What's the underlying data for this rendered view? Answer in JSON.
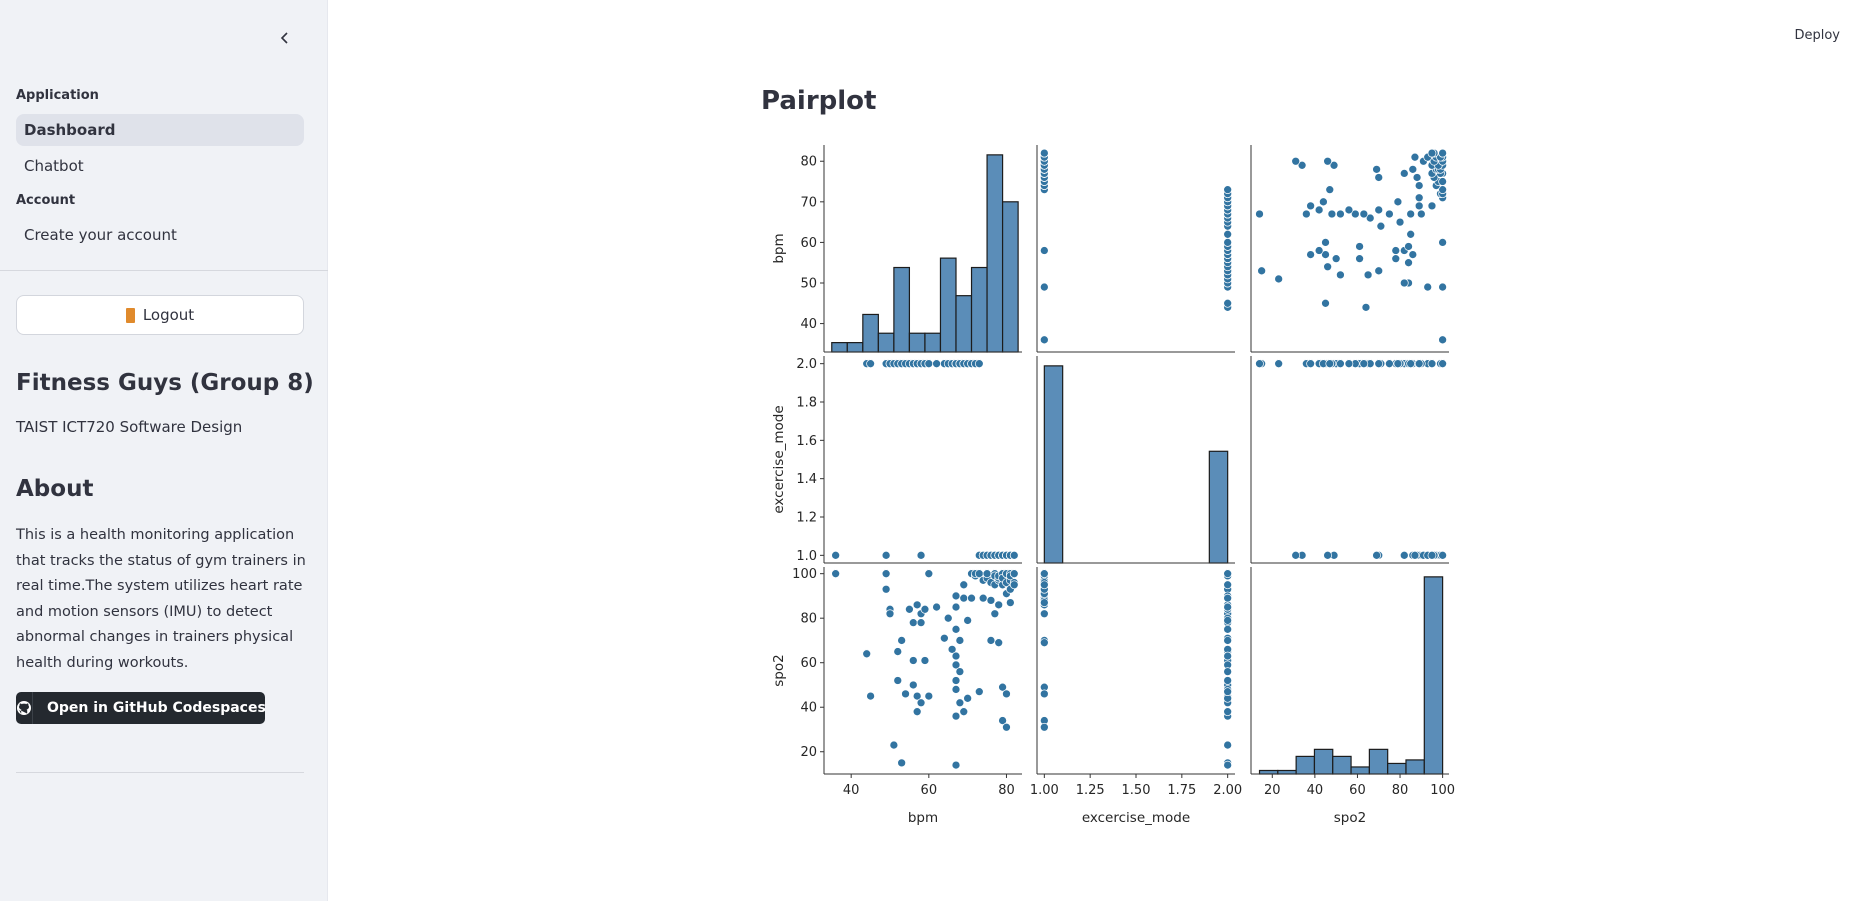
{
  "sidebar": {
    "nav": [
      {
        "header": "Application",
        "items": [
          {
            "label": "Dashboard",
            "active": true
          },
          {
            "label": "Chatbot",
            "active": false
          }
        ]
      },
      {
        "header": "Account",
        "items": [
          {
            "label": "Create your account",
            "active": false
          }
        ]
      }
    ],
    "logout_label": "Logout",
    "team_title": "Fitness Guys (Group 8)",
    "course": "TAIST ICT720 Software Design",
    "about_title": "About",
    "about_text": "This is a health monitoring application that tracks the status of gym trainers in real time.The system utilizes heart rate and motion sensors (IMU) to detect abnormal changes in trainers physical health during workouts.",
    "codespaces_label": "Open in GitHub Codespaces"
  },
  "header": {
    "deploy_label": "Deploy"
  },
  "main": {
    "title": "Pairplot"
  },
  "chart_data": {
    "type": "scatter",
    "title": "",
    "variables": [
      {
        "name": "bpm",
        "range": [
          33,
          84
        ],
        "ticks": [
          40,
          60,
          80
        ],
        "yticks": [
          40,
          50,
          60,
          70,
          80
        ]
      },
      {
        "name": "excercise_mode",
        "range": [
          0.96,
          2.04
        ],
        "ticks": [
          1.0,
          1.25,
          1.5,
          1.75,
          2.0
        ],
        "yticks": [
          1.0,
          1.2,
          1.4,
          1.6,
          1.8,
          2.0
        ]
      },
      {
        "name": "spo2",
        "range": [
          10,
          103
        ],
        "ticks": [
          20,
          40,
          60,
          80,
          100
        ],
        "yticks": [
          20,
          40,
          60,
          80,
          100
        ]
      }
    ],
    "hist": {
      "bpm": {
        "edges": [
          35,
          39,
          43,
          47,
          51,
          55,
          59,
          63,
          67,
          71,
          75,
          79,
          83
        ],
        "counts": [
          1,
          1,
          4,
          2,
          9,
          2,
          2,
          10,
          6,
          9,
          21,
          16
        ]
      },
      "excercise_mode": {
        "edges": [
          1.0,
          1.1,
          1.9,
          2.0
        ],
        "counts": [
          60,
          0,
          34
        ]
      },
      "spo2": {
        "edges": [
          14,
          22.6,
          31.2,
          39.8,
          48.4,
          57,
          65.6,
          74.2,
          82.8,
          91.4,
          100
        ],
        "counts": [
          1,
          1,
          5,
          7,
          5,
          2,
          7,
          3,
          4,
          56
        ]
      }
    },
    "hist_max": {
      "bpm": 21,
      "excercise_mode": 60,
      "spo2": 56
    },
    "points": [
      [
        36,
        1,
        100
      ],
      [
        44,
        2,
        64
      ],
      [
        45,
        2,
        45
      ],
      [
        49,
        1,
        100
      ],
      [
        49,
        2,
        93
      ],
      [
        50,
        2,
        84
      ],
      [
        50,
        2,
        82
      ],
      [
        51,
        2,
        23
      ],
      [
        52,
        2,
        52
      ],
      [
        52,
        2,
        65
      ],
      [
        53,
        2,
        70
      ],
      [
        53,
        2,
        15
      ],
      [
        54,
        2,
        46
      ],
      [
        55,
        2,
        84
      ],
      [
        56,
        2,
        78
      ],
      [
        56,
        2,
        61
      ],
      [
        56,
        2,
        50
      ],
      [
        57,
        2,
        45
      ],
      [
        57,
        2,
        86
      ],
      [
        57,
        2,
        38
      ],
      [
        58,
        1,
        82
      ],
      [
        58,
        2,
        42
      ],
      [
        58,
        2,
        78
      ],
      [
        59,
        2,
        61
      ],
      [
        59,
        2,
        84
      ],
      [
        60,
        2,
        100
      ],
      [
        60,
        2,
        45
      ],
      [
        62,
        2,
        85
      ],
      [
        64,
        2,
        71
      ],
      [
        65,
        2,
        80
      ],
      [
        66,
        2,
        66
      ],
      [
        67,
        2,
        36
      ],
      [
        67,
        2,
        48
      ],
      [
        67,
        2,
        63
      ],
      [
        67,
        2,
        14
      ],
      [
        67,
        2,
        59
      ],
      [
        67,
        2,
        52
      ],
      [
        67,
        2,
        90
      ],
      [
        67,
        2,
        85
      ],
      [
        67,
        2,
        75
      ],
      [
        68,
        2,
        70
      ],
      [
        68,
        2,
        56
      ],
      [
        68,
        2,
        42
      ],
      [
        69,
        2,
        95
      ],
      [
        69,
        2,
        38
      ],
      [
        69,
        2,
        89
      ],
      [
        70,
        2,
        44
      ],
      [
        70,
        2,
        79
      ],
      [
        71,
        2,
        100
      ],
      [
        71,
        2,
        89
      ],
      [
        72,
        2,
        99
      ],
      [
        72,
        2,
        100
      ],
      [
        73,
        2,
        47
      ],
      [
        73,
        1,
        100
      ],
      [
        74,
        1,
        89
      ],
      [
        74,
        1,
        97
      ],
      [
        75,
        1,
        98
      ],
      [
        75,
        1,
        100
      ],
      [
        76,
        1,
        96
      ],
      [
        76,
        1,
        88
      ],
      [
        76,
        1,
        70
      ],
      [
        77,
        1,
        95
      ],
      [
        77,
        1,
        100
      ],
      [
        77,
        1,
        99
      ],
      [
        77,
        1,
        82
      ],
      [
        78,
        1,
        97
      ],
      [
        78,
        1,
        98
      ],
      [
        78,
        1,
        86
      ],
      [
        78,
        1,
        99
      ],
      [
        78,
        1,
        69
      ],
      [
        79,
        1,
        34
      ],
      [
        79,
        1,
        49
      ],
      [
        79,
        1,
        100
      ],
      [
        79,
        1,
        95
      ],
      [
        79,
        1,
        98
      ],
      [
        80,
        1,
        96
      ],
      [
        80,
        1,
        100
      ],
      [
        80,
        1,
        91
      ],
      [
        80,
        1,
        46
      ],
      [
        80,
        1,
        31
      ],
      [
        80,
        1,
        100
      ],
      [
        81,
        1,
        93
      ],
      [
        81,
        1,
        97
      ],
      [
        81,
        1,
        87
      ],
      [
        81,
        1,
        100
      ],
      [
        81,
        1,
        99
      ],
      [
        82,
        1,
        100
      ],
      [
        82,
        1,
        96
      ],
      [
        82,
        1,
        95
      ],
      [
        82,
        1,
        100
      ]
    ]
  }
}
